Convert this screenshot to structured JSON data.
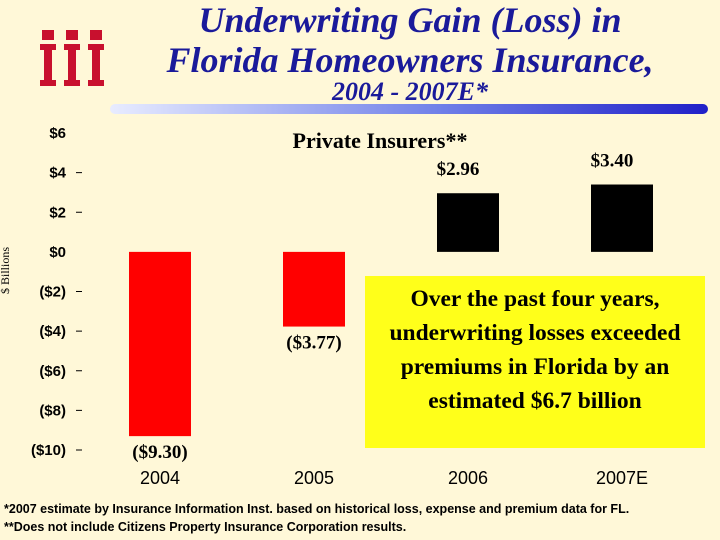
{
  "title": {
    "line1": "Underwriting Gain (Loss) in",
    "line2": "Florida Homeowners Insurance,",
    "line3": "2004 - 2007E*"
  },
  "logo": {
    "text": "iii"
  },
  "chart_data": {
    "type": "bar",
    "title": "Private Insurers**",
    "ylabel": "$ Billions",
    "categories": [
      "2004",
      "2005",
      "2006",
      "2007E"
    ],
    "values": [
      -9.3,
      -3.77,
      2.96,
      3.4
    ],
    "data_labels": [
      "($9.30)",
      "($3.77)",
      "$2.96",
      "$3.40"
    ],
    "ylim": [
      -10,
      6
    ],
    "yticks": [
      6,
      4,
      2,
      0,
      -2,
      -4,
      -6,
      -8,
      -10
    ],
    "ytick_labels": [
      "$6",
      "$4",
      "$2",
      "$0",
      "($2)",
      "($4)",
      "($6)",
      "($8)",
      "($10)"
    ],
    "grid": false,
    "colors": {
      "negative": "#ff0000",
      "positive": "#000000"
    }
  },
  "callout": {
    "text": "Over the past four years, underwriting losses exceeded premiums in Florida by an estimated $6.7 billion",
    "background": "#ffff1a"
  },
  "footnotes": {
    "line1": "*2007 estimate by Insurance Information Inst. based on historical loss, expense and premium data for FL.",
    "line2": "**Does not include Citizens Property Insurance Corporation results."
  }
}
